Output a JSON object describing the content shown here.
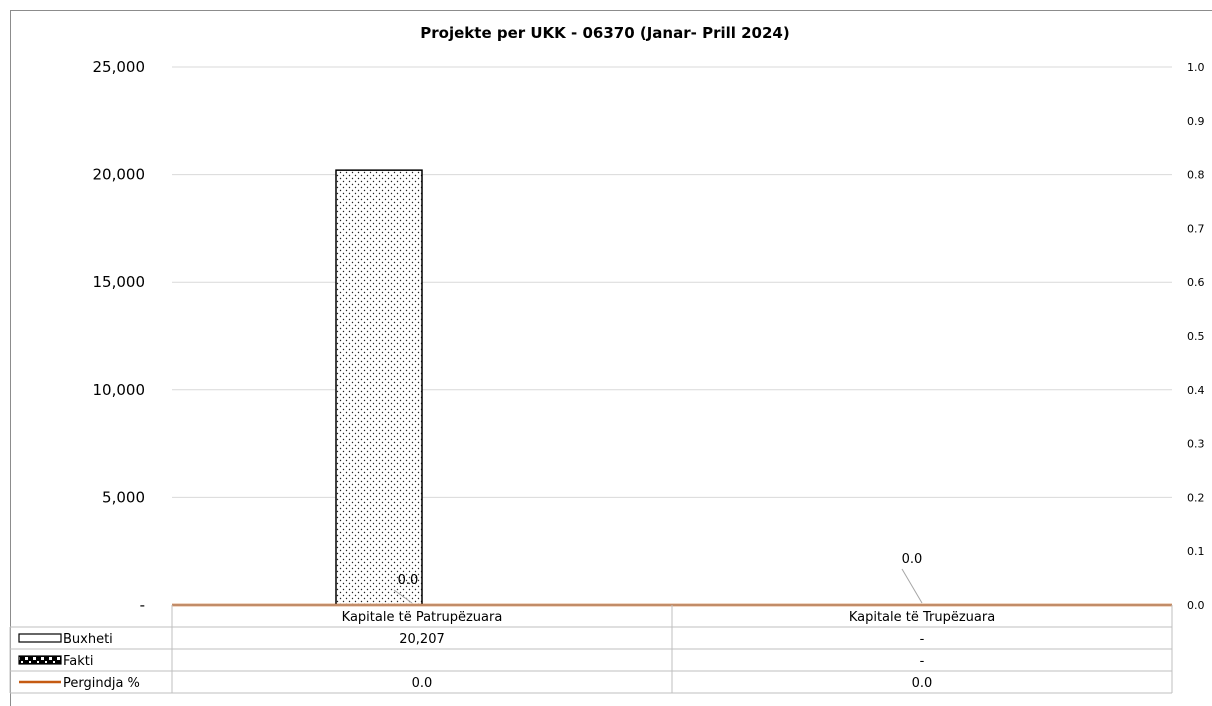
{
  "chart_data": {
    "type": "bar",
    "title": "Projekte per UKK - 06370 (Janar- Prill 2024)",
    "categories": [
      "Kapitale të Patrupëzuara",
      "Kapitale të Trupëzuara"
    ],
    "ylim": [
      0,
      25000
    ],
    "y2lim": [
      0,
      1.0
    ],
    "y_ticks": [
      "-",
      "5,000",
      "10,000",
      "15,000",
      "20,000",
      "25,000"
    ],
    "y2_ticks": [
      "0.0",
      "0.1",
      "0.2",
      "0.3",
      "0.4",
      "0.5",
      "0.6",
      "0.7",
      "0.8",
      "0.9",
      "1.0"
    ],
    "grid": true,
    "legend": "data-table",
    "series": [
      {
        "name": "Buxheti",
        "kind": "bar",
        "pattern": "dots",
        "values": [
          20207,
          0
        ],
        "table": [
          "20,207",
          "-"
        ]
      },
      {
        "name": "Fakti",
        "kind": "bar",
        "pattern": "checker",
        "values": [
          0,
          0
        ],
        "table": [
          "",
          "-"
        ]
      },
      {
        "name": "Pergindja %",
        "kind": "line",
        "axis": "secondary",
        "color": "#c55a11",
        "values": [
          0.0,
          0.0
        ],
        "table": [
          "0.0",
          "0.0"
        ],
        "labels": [
          "0.0",
          "0.0"
        ]
      }
    ]
  }
}
